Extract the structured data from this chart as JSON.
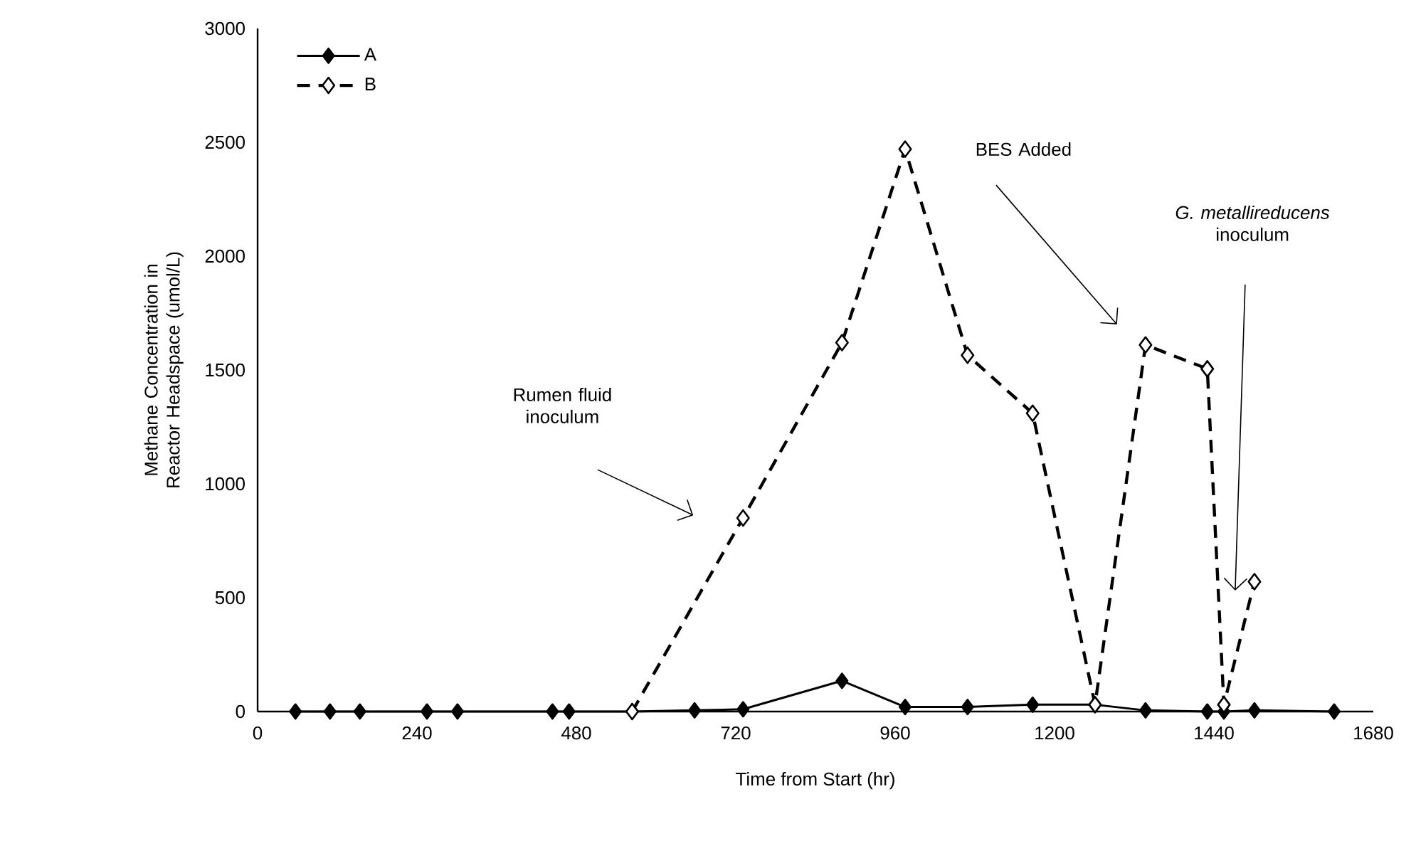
{
  "chart_data": {
    "type": "line",
    "xlabel": "Time from Start (hr)",
    "ylabel": "Methane Concentration in Reactor Headspace (umol/L)",
    "xlim": [
      0,
      1680
    ],
    "xticks": [
      0,
      240,
      480,
      720,
      960,
      1200,
      1440,
      1680
    ],
    "ylim": [
      0,
      3000
    ],
    "yticks": [
      0,
      500,
      1000,
      1500,
      2000,
      2500,
      3000
    ],
    "grid": false,
    "legend": "top left",
    "marker": "diamond",
    "series": [
      {
        "name": "A",
        "color": "#000000",
        "line_style": "solid",
        "x": [
          57,
          109,
          154,
          255,
          301,
          444,
          469,
          564,
          658,
          731,
          880,
          975,
          1069,
          1167,
          1261,
          1337,
          1430,
          1455,
          1501,
          1621
        ],
        "values": [
          0,
          0,
          0,
          0,
          0,
          0,
          0,
          0,
          5,
          10,
          135,
          20,
          20,
          30,
          30,
          5,
          0,
          0,
          5,
          0
        ]
      },
      {
        "name": "B",
        "color": "#000000",
        "line_style": "dashed",
        "x": [
          564,
          731,
          880,
          975,
          1069,
          1167,
          1261,
          1337,
          1430,
          1455,
          1501
        ],
        "values": [
          0,
          850,
          1620,
          2470,
          1565,
          1310,
          30,
          1610,
          1505,
          30,
          570
        ]
      }
    ],
    "annotations": [
      "Rumen fluid inoculum",
      "BES Added",
      "*G. metallireducens* inoculum"
    ]
  }
}
